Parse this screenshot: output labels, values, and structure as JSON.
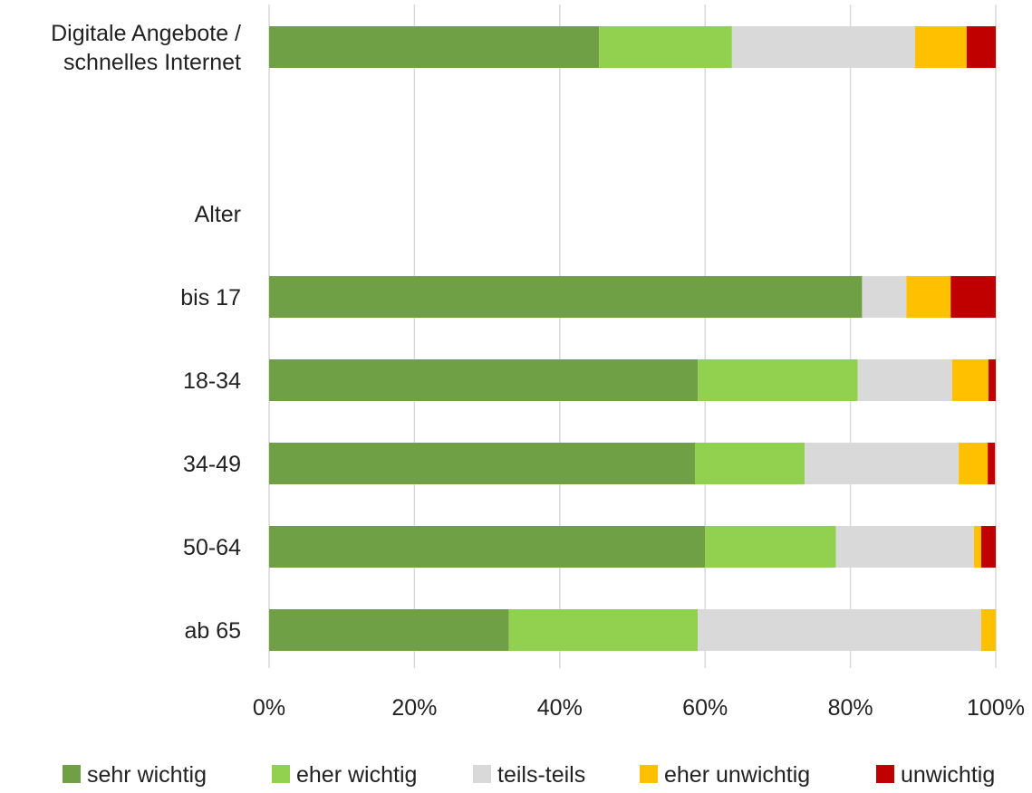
{
  "chart_data": {
    "type": "bar",
    "orientation": "horizontal",
    "stacked": "percent",
    "title": "",
    "xlabel": "",
    "ylabel": "",
    "xlim": [
      0,
      100
    ],
    "x_ticks": [
      "0%",
      "20%",
      "40%",
      "60%",
      "80%",
      "100%"
    ],
    "grid": "vertical",
    "legend_position": "bottom",
    "categories": [
      "Digitale Angebote / schnelles Internet",
      "Alter",
      "bis 17",
      "18-34",
      "34-49",
      "50-64",
      "ab 65"
    ],
    "category_lines": [
      [
        "Digitale Angebote /",
        "schnelles Internet"
      ],
      [
        "Alter"
      ],
      [
        "bis 17"
      ],
      [
        "18-34"
      ],
      [
        "34-49"
      ],
      [
        "50-64"
      ],
      [
        "ab 65"
      ]
    ],
    "series": [
      {
        "name": "sehr wichtig",
        "color": "#70A046",
        "values": [
          45.4,
          null,
          81.6,
          59.0,
          58.6,
          60.0,
          33.0
        ]
      },
      {
        "name": "eher wichtig",
        "color": "#92D050",
        "values": [
          18.3,
          null,
          0.0,
          22.0,
          15.1,
          18.0,
          26.0
        ]
      },
      {
        "name": "teils-teils",
        "color": "#D9D9D9",
        "values": [
          25.2,
          null,
          6.1,
          13.0,
          21.2,
          19.0,
          39.0
        ]
      },
      {
        "name": "eher unwichtig",
        "color": "#FFC000",
        "values": [
          7.1,
          null,
          6.1,
          5.0,
          4.0,
          1.0,
          2.0
        ]
      },
      {
        "name": "unwichtig",
        "color": "#C00000",
        "values": [
          4.0,
          null,
          6.2,
          1.0,
          1.0,
          2.0,
          0.0
        ]
      }
    ]
  }
}
